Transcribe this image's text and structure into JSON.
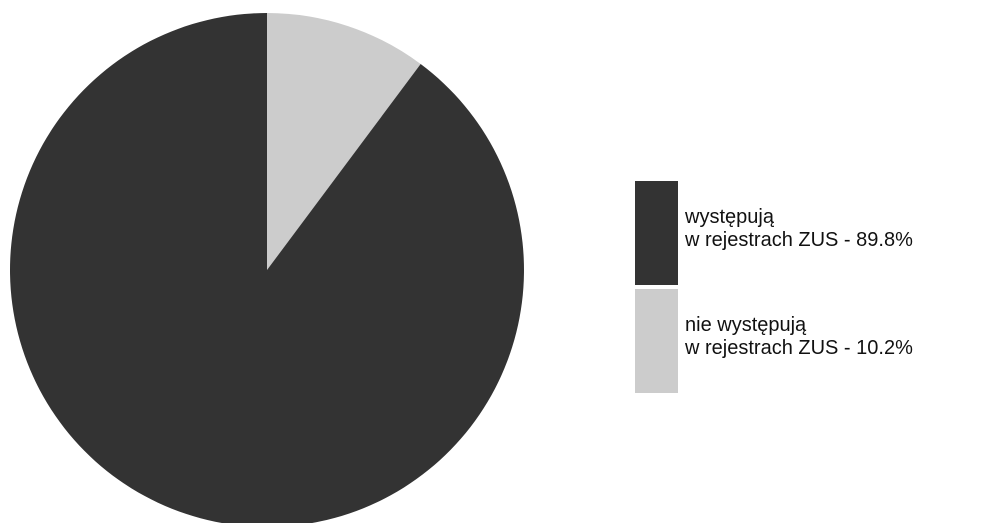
{
  "chart_data": {
    "type": "pie",
    "title": "",
    "slices": [
      {
        "name_line1": "występują",
        "name_line2": "w rejestrach ZUS - 89.8%",
        "value": 89.8,
        "color": "#333333"
      },
      {
        "name_line1": "nie występują",
        "name_line2": "w rejestrach ZUS - 10.2%",
        "value": 10.2,
        "color": "#cccccc"
      }
    ],
    "legend_position": "right"
  }
}
